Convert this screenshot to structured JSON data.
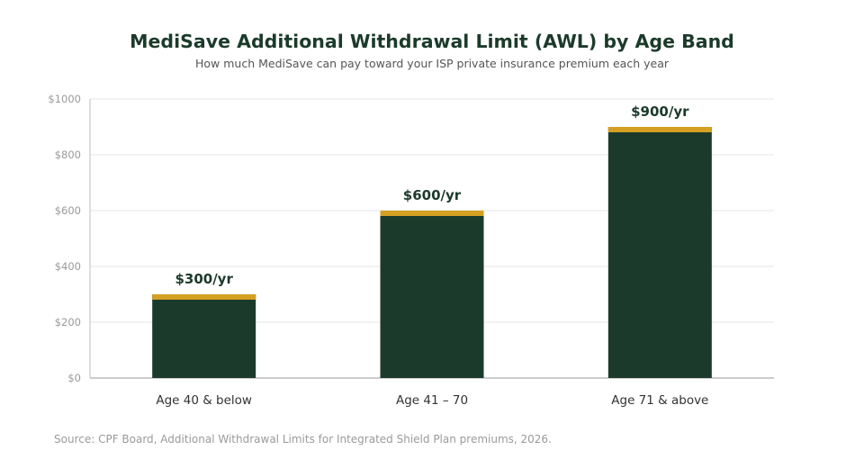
{
  "chart_data": {
    "type": "bar",
    "title": "MediSave Additional Withdrawal Limit (AWL) by Age Band",
    "subtitle": "How much MediSave can pay toward your ISP private insurance premium each year",
    "categories": [
      "Age 40 & below",
      "Age 41 – 70",
      "Age 71 & above"
    ],
    "values": [
      300,
      600,
      900
    ],
    "data_labels": [
      "$300/yr",
      "$600/yr",
      "$900/yr"
    ],
    "ylim": [
      0,
      1000
    ],
    "yticks": [
      0,
      200,
      400,
      600,
      800,
      1000
    ],
    "ytick_labels": [
      "$0",
      "$200",
      "$400",
      "$600",
      "$800",
      "$1000"
    ],
    "xlabel": "",
    "ylabel": "",
    "grid": true,
    "colors": {
      "bar": "#1c3a2b",
      "bar_cap": "#d4a023",
      "gridline": "#e6e6e6",
      "axis": "#bbbbbb",
      "tick_label": "#999999",
      "category_label": "#333333",
      "data_label": "#1c3a2b"
    }
  },
  "source_note": "Source: CPF Board, Additional Withdrawal Limits for Integrated Shield Plan premiums, 2026."
}
